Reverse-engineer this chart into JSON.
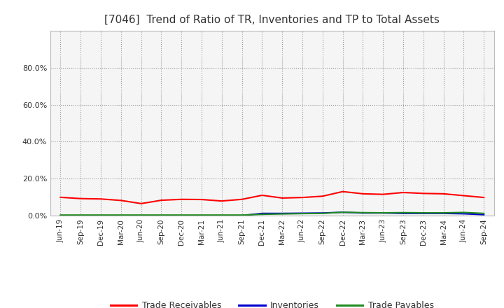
{
  "title": "[7046]  Trend of Ratio of TR, Inventories and TP to Total Assets",
  "x_labels": [
    "Jun-19",
    "Sep-19",
    "Dec-19",
    "Mar-20",
    "Jun-20",
    "Sep-20",
    "Dec-20",
    "Mar-21",
    "Jun-21",
    "Sep-21",
    "Dec-21",
    "Mar-22",
    "Jun-22",
    "Sep-22",
    "Dec-22",
    "Mar-23",
    "Jun-23",
    "Sep-23",
    "Dec-23",
    "Mar-24",
    "Jun-24",
    "Sep-24"
  ],
  "trade_receivables": [
    0.099,
    0.092,
    0.09,
    0.082,
    0.065,
    0.083,
    0.088,
    0.087,
    0.079,
    0.088,
    0.11,
    0.095,
    0.098,
    0.105,
    0.13,
    0.118,
    0.115,
    0.125,
    0.12,
    0.118,
    0.108,
    0.098
  ],
  "inventories": [
    0.0,
    0.0,
    0.0,
    0.0,
    0.0,
    0.0,
    0.0,
    0.0,
    0.0,
    0.0,
    0.012,
    0.012,
    0.013,
    0.014,
    0.018,
    0.014,
    0.014,
    0.012,
    0.012,
    0.012,
    0.01,
    0.005
  ],
  "trade_payables": [
    0.003,
    0.003,
    0.003,
    0.003,
    0.003,
    0.003,
    0.003,
    0.003,
    0.003,
    0.003,
    0.007,
    0.009,
    0.011,
    0.012,
    0.018,
    0.016,
    0.015,
    0.016,
    0.015,
    0.015,
    0.017,
    0.012
  ],
  "tr_color": "#ff0000",
  "inv_color": "#0000cd",
  "tp_color": "#228b22",
  "background_color": "#ffffff",
  "plot_bg_color": "#f5f5f5",
  "grid_color": "#999999",
  "legend_labels": [
    "Trade Receivables",
    "Inventories",
    "Trade Payables"
  ],
  "title_color": "#333333",
  "ytick_labels": [
    "0.0%",
    "20.0%",
    "40.0%",
    "60.0%",
    "80.0%"
  ],
  "ytick_values": [
    0.0,
    0.2,
    0.4,
    0.6,
    0.8
  ]
}
